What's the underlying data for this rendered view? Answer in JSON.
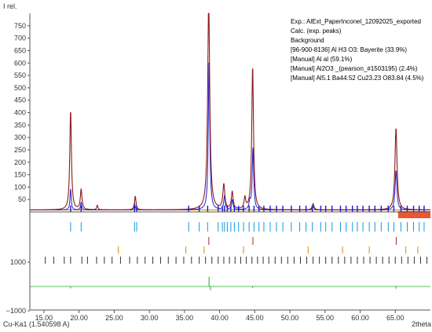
{
  "chart_data": {
    "type": "line",
    "ylabel": "I rel.",
    "xlabel": "2theta",
    "radiation": "Cu-Ka1 (1.540598 A)",
    "xlim": [
      13.0,
      70.0
    ],
    "ylim": [
      0,
      800
    ],
    "x_ticks": [
      15.0,
      20.0,
      25.0,
      30.0,
      35.0,
      40.0,
      45.0,
      50.0,
      55.0,
      60.0,
      65.0
    ],
    "x_tick_labels": [
      "15.00",
      "20.00",
      "25.00",
      "30.00",
      "35.00",
      "40.00",
      "45.00",
      "50.00",
      "55.00",
      "60.00",
      "65.00"
    ],
    "y_ticks": [
      50,
      100,
      150,
      200,
      250,
      300,
      350,
      400,
      450,
      500,
      550,
      600,
      650,
      700,
      750
    ],
    "diff_ticks": [
      1000,
      -1000
    ],
    "legend_position": "top-right",
    "legend": [
      {
        "label": "Exp.: AlExt_PaperInconel_12092025_exported",
        "color": "#2222cc"
      },
      {
        "label": "Calc. (exp. peaks)",
        "color": "#cc1111"
      },
      {
        "label": "Background",
        "color": "#cc8800"
      },
      {
        "label": "[96-900-8136] Al H3 O3: Bayerite (33.9%)",
        "color": "#1199dd"
      },
      {
        "label": "[Manual] Al al (59.1%)",
        "color": "#aa2222"
      },
      {
        "label": "[Manual] Al2O3 _(pearson_#1503195) (2.4%)",
        "color": "#dd8800"
      },
      {
        "label": "[Manual] Al5.1 Ba44.52 Cu23.23 O83.84 (4.5%)",
        "color": "#333333"
      }
    ],
    "background_level": 8,
    "series": [
      {
        "name": "Exp.: AlExt_PaperInconel_12092025_exported",
        "color": "#2222cc",
        "peaks": [
          {
            "x": 18.8,
            "y": 85,
            "w": 0.2
          },
          {
            "x": 20.3,
            "y": 30,
            "w": 0.2
          },
          {
            "x": 27.9,
            "y": 25,
            "w": 0.2
          },
          {
            "x": 38.5,
            "y": 600,
            "w": 0.25
          },
          {
            "x": 40.7,
            "y": 55,
            "w": 0.25
          },
          {
            "x": 41.8,
            "y": 40,
            "w": 0.25
          },
          {
            "x": 44.3,
            "y": 30,
            "w": 0.25
          },
          {
            "x": 44.75,
            "y": 250,
            "w": 0.25
          },
          {
            "x": 53.3,
            "y": 15,
            "w": 0.25
          },
          {
            "x": 65.1,
            "y": 160,
            "w": 0.3
          }
        ]
      },
      {
        "name": "Calc. (exp. peaks)",
        "color": "#8b1a1a",
        "peaks": [
          {
            "x": 18.8,
            "y": 400,
            "w": 0.28
          },
          {
            "x": 20.3,
            "y": 80,
            "w": 0.28
          },
          {
            "x": 22.6,
            "y": 18,
            "w": 0.2
          },
          {
            "x": 28.0,
            "y": 55,
            "w": 0.25
          },
          {
            "x": 38.45,
            "y": 840,
            "w": 0.35
          },
          {
            "x": 40.6,
            "y": 100,
            "w": 0.32
          },
          {
            "x": 41.8,
            "y": 70,
            "w": 0.3
          },
          {
            "x": 43.6,
            "y": 45,
            "w": 0.28
          },
          {
            "x": 44.7,
            "y": 575,
            "w": 0.3
          },
          {
            "x": 53.3,
            "y": 25,
            "w": 0.3
          },
          {
            "x": 65.1,
            "y": 330,
            "w": 0.35
          }
        ]
      }
    ],
    "phase_ticks": [
      {
        "name": "[96-900-8136] Al H3 O3: Bayerite (33.9%)",
        "color": "#1199dd",
        "row": 0,
        "x": [
          18.8,
          20.3,
          27.9,
          28.2,
          35.6,
          37.1,
          38.3,
          39.8,
          40.4,
          40.7,
          41.1,
          41.6,
          42.1,
          42.7,
          43.4,
          44.2,
          44.9,
          45.6,
          46.3,
          47.2,
          48.1,
          49.0,
          50.2,
          51.4,
          52.3,
          53.2,
          54.4,
          55.1,
          56.0,
          57.2,
          58.0,
          58.9,
          59.6,
          60.4,
          61.3,
          62.1,
          63.0,
          64.0,
          64.8,
          65.8,
          66.7,
          67.6,
          68.4,
          69.1
        ]
      },
      {
        "name": "[Manual] Al al (59.1%)",
        "color": "#aa2222",
        "row": 1,
        "x": [
          38.47,
          44.74,
          65.13
        ]
      },
      {
        "name": "[Manual] Al2O3 _(pearson_#1503195) (2.4%)",
        "color": "#dd8800",
        "row": 2,
        "x": [
          25.6,
          35.2,
          37.8,
          43.4,
          52.6,
          57.5,
          61.3,
          66.5,
          68.2
        ]
      },
      {
        "name": "[Manual] Al5.1 Ba44.52 Cu23.23 O83.84 (4.5%)",
        "color": "#333333",
        "row": 3,
        "x": [
          15.2,
          16.4,
          17.9,
          18.8,
          20.4,
          21.2,
          22.5,
          23.6,
          24.7,
          25.9,
          27.2,
          28.3,
          29.4,
          30.5,
          31.6,
          32.7,
          33.8,
          34.9,
          36.0,
          37.1,
          38.0,
          38.9,
          39.8,
          40.6,
          41.4,
          42.2,
          43.0,
          43.8,
          44.6,
          45.4,
          46.2,
          47.0,
          47.9,
          48.8,
          49.7,
          50.6,
          51.5,
          52.4,
          53.3,
          54.2,
          55.1,
          56.0,
          56.9,
          57.8,
          58.7,
          59.6,
          60.5,
          61.4,
          62.3,
          63.2,
          64.1,
          65.0,
          65.9,
          66.8,
          67.7,
          68.6,
          69.5
        ]
      }
    ],
    "difference": {
      "color": "#22aa22",
      "spikes": [
        {
          "x": 18.8,
          "y": -80
        },
        {
          "x": 38.5,
          "y": 400
        },
        {
          "x": 38.7,
          "y": -150
        },
        {
          "x": 44.7,
          "y": -60
        },
        {
          "x": 65.1,
          "y": -90
        }
      ]
    },
    "excluded_region": {
      "from": 65.4,
      "to": 70.0,
      "color": "#ee5533"
    },
    "colors": {
      "axis": "#555555",
      "main_tick_label": "#333333",
      "diff_tick_label": "#118811",
      "position_markers": "#1a1acc"
    }
  }
}
